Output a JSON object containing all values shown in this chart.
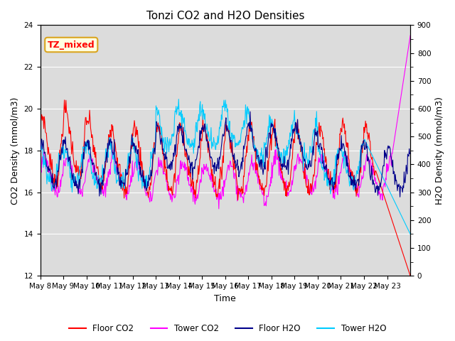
{
  "title": "Tonzi CO2 and H2O Densities",
  "xlabel": "Time",
  "ylabel_left": "CO2 Density (mmol/m3)",
  "ylabel_right": "H2O Density (mmol/m3)",
  "ylim_left": [
    12,
    24
  ],
  "ylim_right": [
    0,
    900
  ],
  "yticks_left": [
    12,
    14,
    16,
    18,
    20,
    22,
    24
  ],
  "yticks_right": [
    0,
    100,
    200,
    300,
    400,
    500,
    600,
    700,
    800,
    900
  ],
  "xtick_labels": [
    "May 8",
    "May 9",
    "May 10",
    "May 11",
    "May 12",
    "May 13",
    "May 14",
    "May 15",
    "May 16",
    "May 17",
    "May 18",
    "May 19",
    "May 20",
    "May 21",
    "May 22",
    "May 23"
  ],
  "annotation_text": "TZ_mixed",
  "colors": {
    "floor_co2": "#FF0000",
    "tower_co2": "#FF00FF",
    "floor_h2o": "#00008B",
    "tower_h2o": "#00CCFF"
  },
  "legend_labels": [
    "Floor CO2",
    "Tower CO2",
    "Floor H2O",
    "Tower H2O"
  ],
  "plot_bg": "#DCDCDC",
  "fig_bg": "#FFFFFF",
  "n_points": 720,
  "days": 16,
  "seed": 7
}
